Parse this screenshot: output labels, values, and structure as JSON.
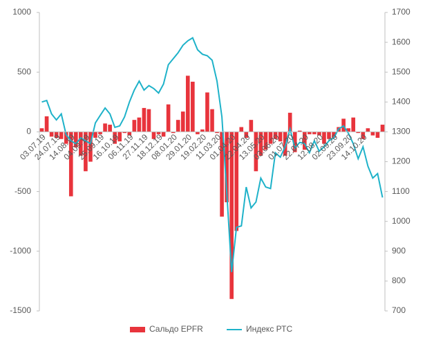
{
  "chart_data": {
    "type": "bar_line",
    "categories": [
      "03.07.19",
      null,
      null,
      "24.07.19",
      null,
      null,
      "14.08.19",
      null,
      null,
      "04.09.19",
      null,
      null,
      "25.09.19",
      null,
      null,
      "16.10.19",
      null,
      null,
      "06.11.19",
      null,
      null,
      "27.11.19",
      null,
      null,
      "18.12.19",
      null,
      null,
      "08.01.20",
      null,
      null,
      "29.01.20",
      null,
      null,
      "19.02.20",
      null,
      null,
      "11.03.20",
      null,
      null,
      "01.04.20",
      null,
      null,
      "22.04.20",
      null,
      null,
      "13.05.20",
      null,
      null,
      "03.06.20",
      null,
      null,
      "01.07.20",
      null,
      null,
      "22.07.20",
      null,
      null,
      "12.08.20",
      null,
      null,
      "02.09.20",
      null,
      null,
      "23.09.20",
      null,
      null,
      "14.10.20",
      null,
      null,
      null,
      null
    ],
    "series": [
      {
        "name": "Сальдо EPFR",
        "color": "#e8343c",
        "kind": "bar",
        "axis": "y",
        "values": [
          30,
          130,
          -40,
          -50,
          -60,
          -100,
          -540,
          -130,
          -200,
          -330,
          -250,
          -50,
          -20,
          70,
          60,
          -100,
          -80,
          -10,
          -30,
          100,
          120,
          200,
          190,
          -60,
          -20,
          -40,
          230,
          -10,
          100,
          170,
          470,
          420,
          -20,
          20,
          330,
          190,
          -10,
          -710,
          -590,
          -1400,
          -830,
          40,
          -50,
          100,
          -330,
          -200,
          -150,
          -100,
          -60,
          -80,
          -200,
          160,
          -170,
          10,
          -150,
          -20,
          -20,
          -30,
          -100,
          -60,
          -50,
          40,
          110,
          30,
          120,
          -10,
          -60,
          30,
          -30,
          -50,
          60
        ]
      },
      {
        "name": "Индекс РТС",
        "color": "#1eb2c9",
        "kind": "line",
        "axis": "y2",
        "values": [
          1400,
          1405,
          1360,
          1340,
          1360,
          1290,
          1270,
          1260,
          1280,
          1270,
          1260,
          1330,
          1355,
          1380,
          1360,
          1315,
          1320,
          1350,
          1400,
          1440,
          1470,
          1440,
          1455,
          1445,
          1430,
          1460,
          1525,
          1545,
          1565,
          1590,
          1605,
          1615,
          1575,
          1560,
          1555,
          1540,
          1470,
          1350,
          1100,
          830,
          980,
          985,
          1115,
          1045,
          1065,
          1145,
          1115,
          1110,
          1230,
          1215,
          1250,
          1310,
          1245,
          1265,
          1260,
          1230,
          1270,
          1235,
          1250,
          1270,
          1280,
          1310,
          1320,
          1295,
          1260,
          1210,
          1250,
          1185,
          1145,
          1160,
          1080
        ]
      }
    ],
    "ylim": [
      -1500,
      1000
    ],
    "yticks": [
      -1500,
      -1000,
      -500,
      0,
      500,
      1000
    ],
    "y2lim": [
      700,
      1700
    ],
    "y2ticks": [
      700,
      800,
      900,
      1000,
      1100,
      1200,
      1300,
      1400,
      1500,
      1600,
      1700
    ],
    "legend": "bottom"
  }
}
